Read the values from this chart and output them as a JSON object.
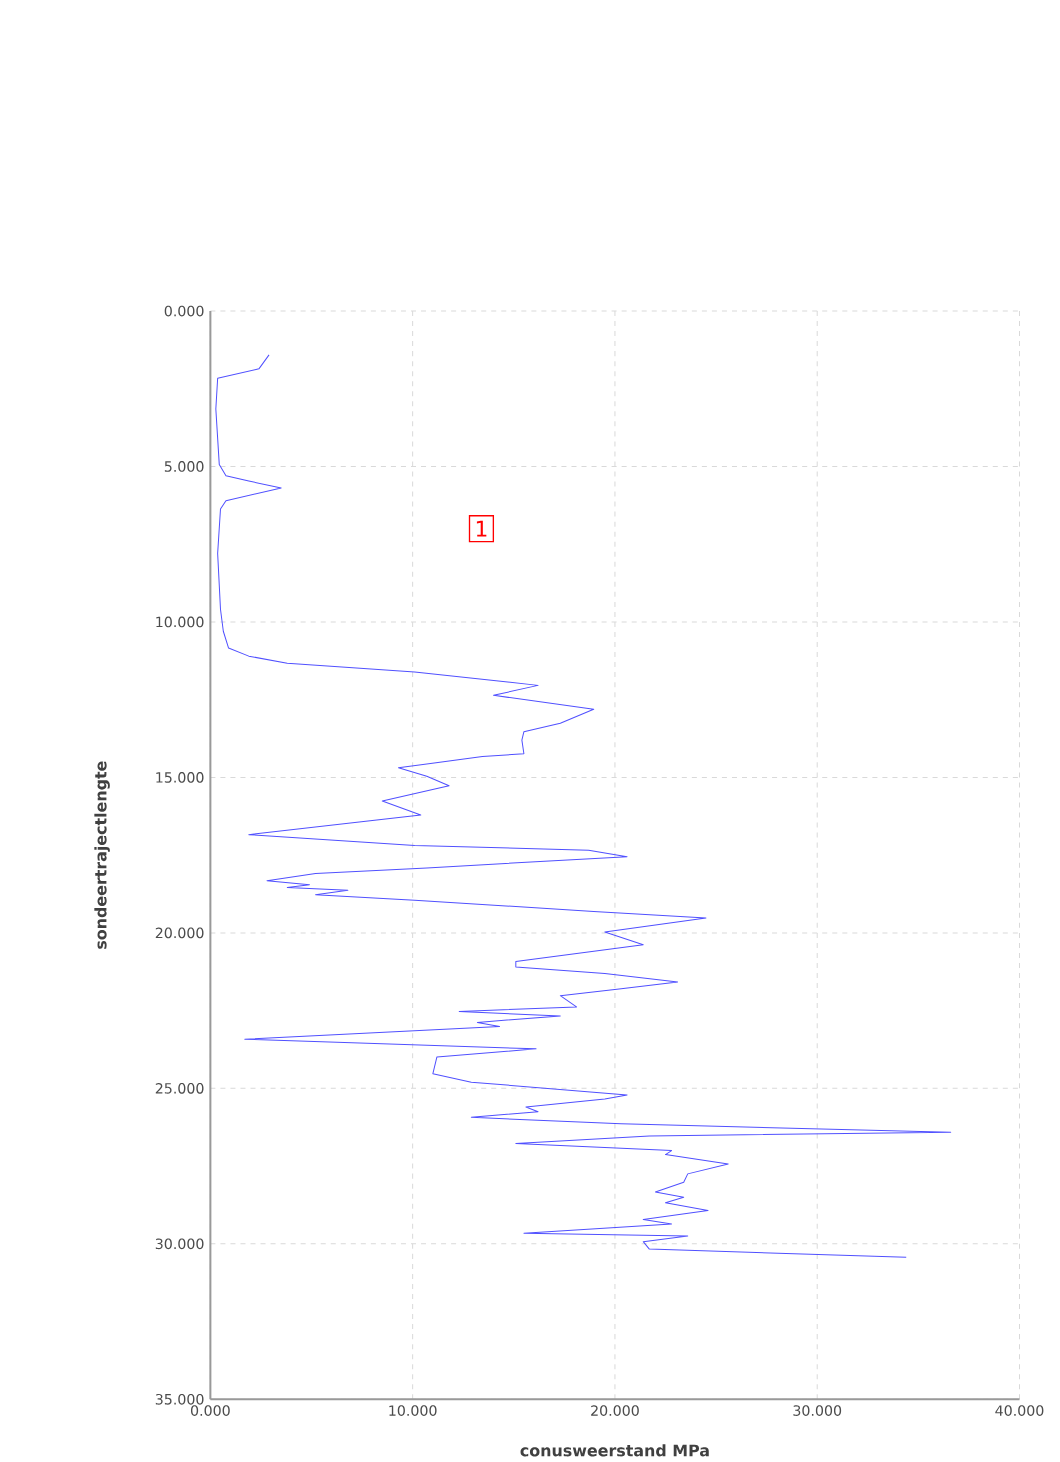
{
  "chart_data": {
    "type": "line",
    "xlabel": "conusweerstand MPa",
    "ylabel": "sondeertrajectlengte",
    "annotations": [
      "1"
    ],
    "xlim": [
      0,
      40
    ],
    "ylim": [
      35,
      0
    ],
    "xticks": [
      {
        "value": 0,
        "label": "0.000"
      },
      {
        "value": 10,
        "label": "10.000"
      },
      {
        "value": 20,
        "label": "20.000"
      },
      {
        "value": 30,
        "label": "30.000"
      },
      {
        "value": 40,
        "label": "40.000"
      }
    ],
    "yticks": [
      {
        "value": 0,
        "label": "0.000"
      },
      {
        "value": 5,
        "label": "5.000"
      },
      {
        "value": 10,
        "label": "10.000"
      },
      {
        "value": 15,
        "label": "15.000"
      },
      {
        "value": 20,
        "label": "20.000"
      },
      {
        "value": 25,
        "label": "25.000"
      },
      {
        "value": 30,
        "label": "30.000"
      },
      {
        "value": 35,
        "label": "35.000"
      }
    ],
    "grid": true,
    "marker": "none",
    "line_style": "solid",
    "series": [
      {
        "color": "#5050ff",
        "x": [
          2.9,
          2.4,
          0.36,
          0.27,
          0.44,
          0.77,
          1.9,
          3.5,
          0.77,
          0.5,
          0.36,
          0.5,
          0.64,
          0.9,
          1.9,
          3.8,
          10.1,
          16.2,
          14.0,
          18.95,
          17.3,
          15.5,
          15.4,
          15.5,
          13.45,
          9.3,
          10.7,
          11.8,
          8.5,
          10.4,
          7.9,
          1.9,
          10.1,
          18.7,
          20.6,
          10.7,
          5.2,
          2.8,
          4.9,
          3.8,
          6.8,
          5.2,
          10.1,
          18.95,
          24.5,
          19.5,
          21.4,
          15.1,
          15.1,
          19.5,
          23.1,
          20.1,
          17.3,
          18.1,
          12.3,
          17.3,
          13.2,
          14.3,
          1.7,
          16.1,
          11.2,
          11.0,
          12.9,
          20.6,
          19.5,
          15.6,
          16.2,
          12.9,
          20.3,
          36.6,
          21.7,
          15.1,
          22.8,
          22.5,
          25.6,
          23.6,
          23.4,
          22.0,
          23.4,
          22.5,
          24.6,
          21.4,
          22.8,
          15.5,
          23.6,
          21.4,
          21.7,
          34.4
        ],
        "values": [
          1.41,
          1.86,
          2.16,
          3.15,
          4.94,
          5.3,
          5.47,
          5.69,
          6.1,
          6.37,
          7.8,
          9.59,
          10.3,
          10.84,
          11.1,
          11.33,
          11.61,
          12.04,
          12.36,
          12.81,
          13.26,
          13.53,
          13.8,
          14.24,
          14.33,
          14.69,
          14.96,
          15.27,
          15.76,
          16.21,
          16.39,
          16.84,
          17.19,
          17.34,
          17.55,
          17.91,
          18.09,
          18.32,
          18.45,
          18.54,
          18.63,
          18.77,
          18.95,
          19.31,
          19.52,
          19.97,
          20.38,
          20.92,
          21.1,
          21.31,
          21.58,
          21.81,
          22.02,
          22.38,
          22.53,
          22.67,
          22.88,
          23.01,
          23.42,
          23.73,
          23.99,
          24.53,
          24.8,
          25.21,
          25.34,
          25.6,
          25.75,
          25.93,
          26.14,
          26.41,
          26.53,
          26.77,
          27.0,
          27.13,
          27.43,
          27.75,
          28.02,
          28.33,
          28.5,
          28.68,
          28.93,
          29.22,
          29.36,
          29.66,
          29.75,
          29.93,
          30.17,
          30.43
        ]
      }
    ]
  }
}
